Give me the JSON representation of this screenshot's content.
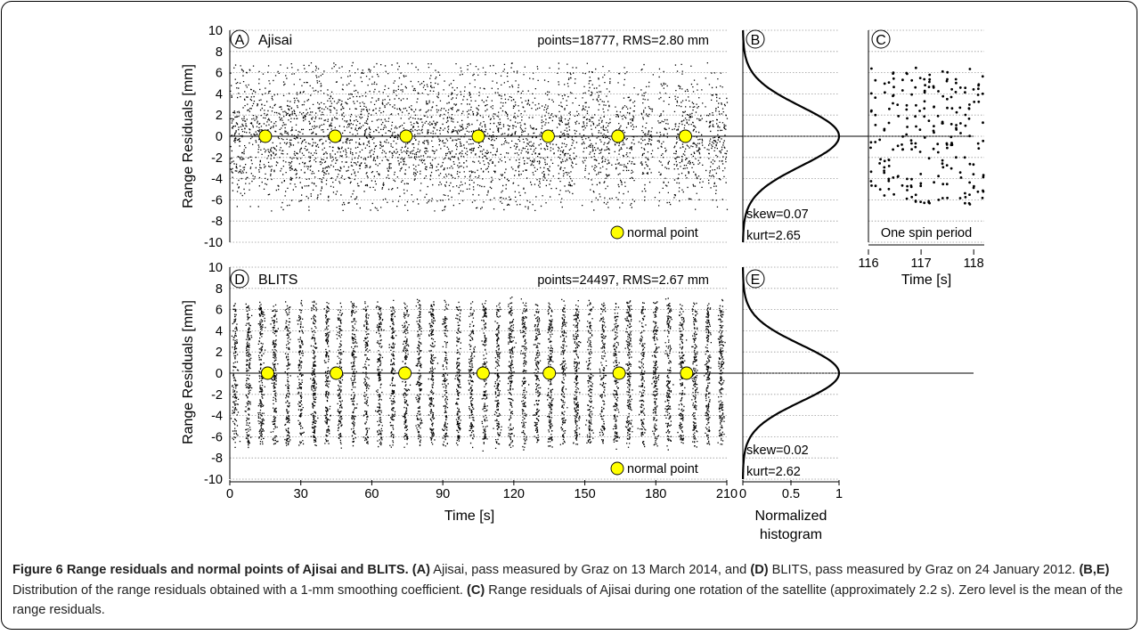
{
  "chart_data": [
    {
      "id": "A",
      "type": "scatter",
      "panel_label": "A",
      "title": "Ajisai",
      "stats": "points=18777, RMS=2.80 mm",
      "ylabel": "Range Residuals [mm]",
      "xlim": [
        0,
        210
      ],
      "ylim": [
        -10,
        10
      ],
      "yticks": [
        "10",
        "8",
        "6",
        "4",
        "2",
        "0",
        "-2",
        "-4",
        "-6",
        "-8",
        "-10"
      ],
      "grid": "horizontal-dotted",
      "legend": "normal point",
      "legend_position": "bottom-right",
      "normal_points": [
        [
          15,
          0
        ],
        [
          44.5,
          0
        ],
        [
          74.5,
          0
        ],
        [
          105,
          0
        ],
        [
          134.5,
          0
        ],
        [
          164,
          0
        ],
        [
          192.5,
          0
        ]
      ],
      "range_residuals_mm": [
        -7,
        7
      ],
      "gaps_s": [
        [
          136.5,
          138.5
        ],
        [
          146.5,
          148.5
        ],
        [
          160.5,
          162
        ],
        [
          171,
          173.5
        ],
        [
          178.5,
          181
        ],
        [
          185.5,
          187.5
        ],
        [
          199.5,
          202
        ]
      ]
    },
    {
      "id": "B",
      "type": "line",
      "panel_label": "B",
      "xlim": [
        0,
        1
      ],
      "ylim": [
        -10,
        10
      ],
      "skew": "skew=0.07",
      "kurt": "kurt=2.65",
      "sigma_mm": 2.8
    },
    {
      "id": "C",
      "type": "scatter",
      "panel_label": "C",
      "annotation": "One spin period",
      "xlabel": "Time [s]",
      "xticks": [
        "116",
        "117",
        "118"
      ],
      "xlim": [
        116,
        118.2
      ],
      "ylim": [
        -10,
        10
      ],
      "range_residuals_mm": [
        -6.5,
        7
      ]
    },
    {
      "id": "D",
      "type": "scatter",
      "panel_label": "D",
      "title": "BLITS",
      "stats": "points=24497, RMS=2.67 mm",
      "ylabel": "Range Residuals [mm]",
      "xlabel": "Time [s]",
      "xticks": [
        "0",
        "30",
        "60",
        "90",
        "120",
        "150",
        "180",
        "210"
      ],
      "yticks": [
        "10",
        "8",
        "6",
        "4",
        "2",
        "0",
        "-2",
        "-4",
        "-6",
        "-8",
        "-10"
      ],
      "xlim": [
        0,
        210
      ],
      "ylim": [
        -10,
        10
      ],
      "grid": "horizontal-dotted",
      "legend": "normal point",
      "legend_position": "bottom-right",
      "normal_points": [
        [
          16,
          0
        ],
        [
          45,
          0
        ],
        [
          74,
          0
        ],
        [
          107,
          0
        ],
        [
          135,
          0
        ],
        [
          164.5,
          0
        ],
        [
          193,
          0
        ]
      ],
      "bands_period_s": 5.55,
      "range_residuals_mm": [
        -6.7,
        6.7
      ]
    },
    {
      "id": "E",
      "type": "line",
      "panel_label": "E",
      "xlabel": "Normalized histogram",
      "xticks": [
        "0",
        "0.5",
        "1"
      ],
      "xlim": [
        0,
        1
      ],
      "ylim": [
        -10,
        10
      ],
      "skew": "skew=0.02",
      "kurt": "kurt=2.62",
      "sigma_mm": 2.67
    }
  ],
  "caption": {
    "label": "Figure 6 Range residuals and normal points of Ajisai and BLITS.",
    "a_label": "(A)",
    "a_text": " Ajisai, pass measured by Graz on 13 March 2014, and ",
    "d_label": "(D)",
    "d_text": " BLITS, pass measured by Graz on 24 January 2012. ",
    "be_label": "(B,E)",
    "be_text": " Distribution of the range residuals obtained with a 1-mm smoothing coefficient. ",
    "c_label": "(C)",
    "c_text": " Range residuals of Ajisai during one rotation of the satellite (approximately 2.2 s). Zero level is the mean of the range residuals."
  },
  "colors": {
    "points": "#000000",
    "normal_point": "#ffff00",
    "grid": "#9a9a9a"
  }
}
